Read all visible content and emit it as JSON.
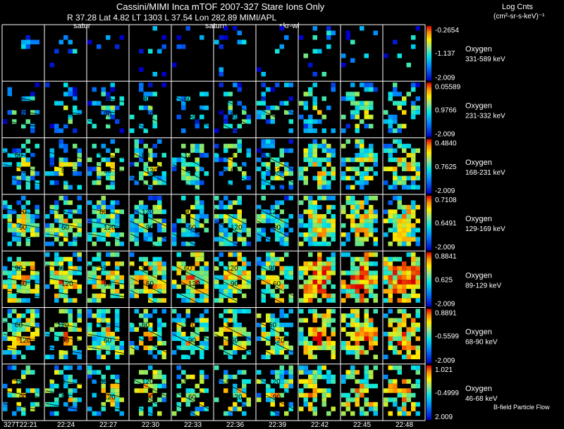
{
  "header": {
    "title": "Cassini/MIMI Inca mTOF  2007-327   Stare    Ions Only",
    "subtitle": "R        37.28 Lat 4.82 LT 1303 L       37.54 Lon        282.89   MIMI/APL",
    "planet_labels": [
      "satur",
      "saturn",
      "skr-wl"
    ]
  },
  "colorbar_title": "Log Cnts",
  "colorbar_units": "(cm²-sr-s-keV)⁻¹",
  "footer_note": "B-field Particle Flow",
  "chart_data": {
    "type": "heatmap",
    "title": "Cassini/MIMI Inca mTOF  2007-327   Stare    Ions Only",
    "time_labels": [
      "327T22:21",
      "22:24",
      "22:27",
      "22:30",
      "22:33",
      "22:36",
      "22:39",
      "22:42",
      "22:45",
      "22:48"
    ],
    "rows": [
      {
        "species": "Oxygen",
        "energy": "331-589 keV",
        "cmax": "-0.2654",
        "cmid": "-1.137",
        "cmin": "-2.009",
        "fill": 0.15,
        "intensity": 0.35
      },
      {
        "species": "Oxygen",
        "energy": "231-332 keV",
        "cmax": "0.05589",
        "cmid": "0.9766",
        "cmin": "-2.009",
        "fill": 0.35,
        "intensity": 0.45
      },
      {
        "species": "Oxygen",
        "energy": "168-231 keV",
        "cmax": "0.4840",
        "cmid": "0.7625",
        "cmin": "-2.009",
        "fill": 0.6,
        "intensity": 0.55
      },
      {
        "species": "Oxygen",
        "energy": "129-169 keV",
        "cmax": "0.7108",
        "cmid": "0.6491",
        "cmin": "-2.009",
        "fill": 0.8,
        "intensity": 0.6
      },
      {
        "species": "Oxygen",
        "energy": "89-129 keV",
        "cmax": "0.8841",
        "cmid": "0.625",
        "cmin": "-2.009",
        "fill": 0.9,
        "intensity": 0.75
      },
      {
        "species": "Oxygen",
        "energy": "68-90 keV",
        "cmax": "0.8891",
        "cmid": "-0.5599",
        "cmin": "-2.009",
        "fill": 0.75,
        "intensity": 0.7
      },
      {
        "species": "Oxygen",
        "energy": "46-68 keV",
        "cmax": "1.021",
        "cmid": "-0.4999",
        "cmin": "2.009",
        "fill": 0.55,
        "intensity": 0.65
      }
    ],
    "contour_labels": [
      "120",
      "90",
      "60",
      "30",
      "150"
    ]
  }
}
